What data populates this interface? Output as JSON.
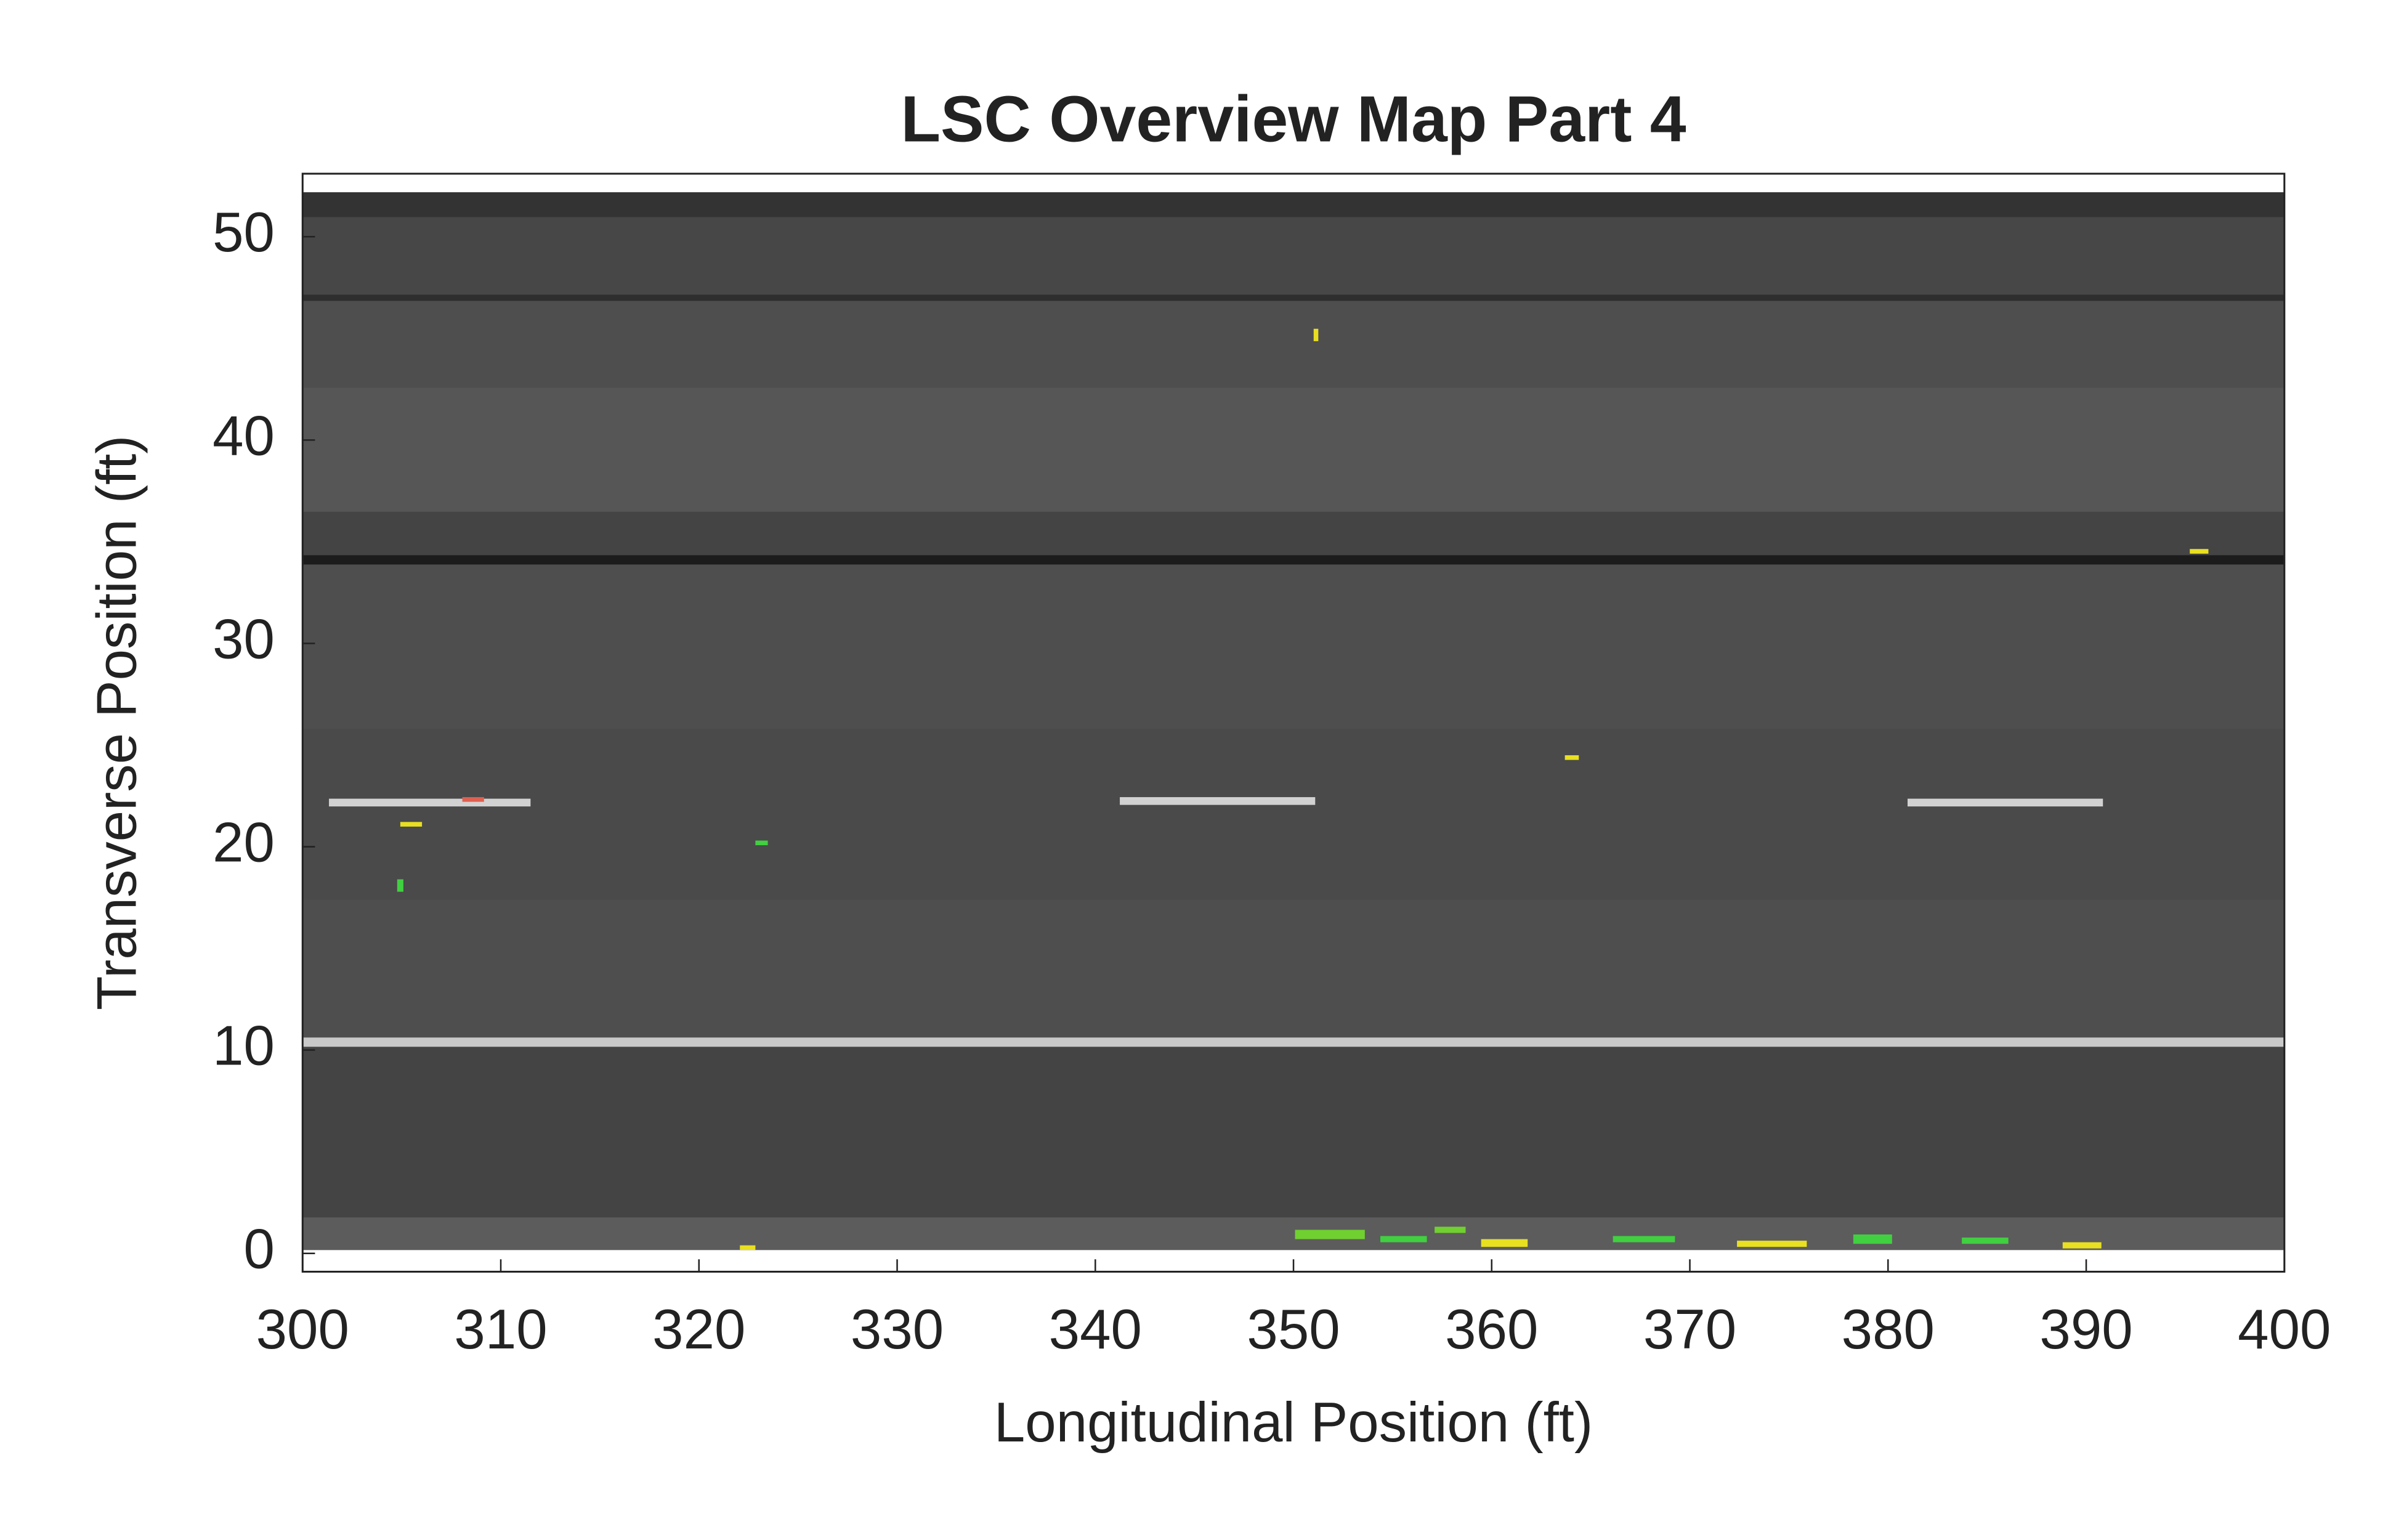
{
  "chart_data": {
    "type": "image",
    "title": "LSC Overview Map Part 4",
    "x_label": "Longitudinal Position (ft)",
    "y_label": "Transverse Position (ft)",
    "xlim": [
      300,
      400
    ],
    "ylim": [
      -0.9,
      53.1
    ],
    "xticks": [
      300,
      310,
      320,
      330,
      340,
      350,
      360,
      370,
      380,
      390,
      400
    ],
    "yticks": [
      0,
      10,
      20,
      30,
      40,
      50
    ]
  }
}
